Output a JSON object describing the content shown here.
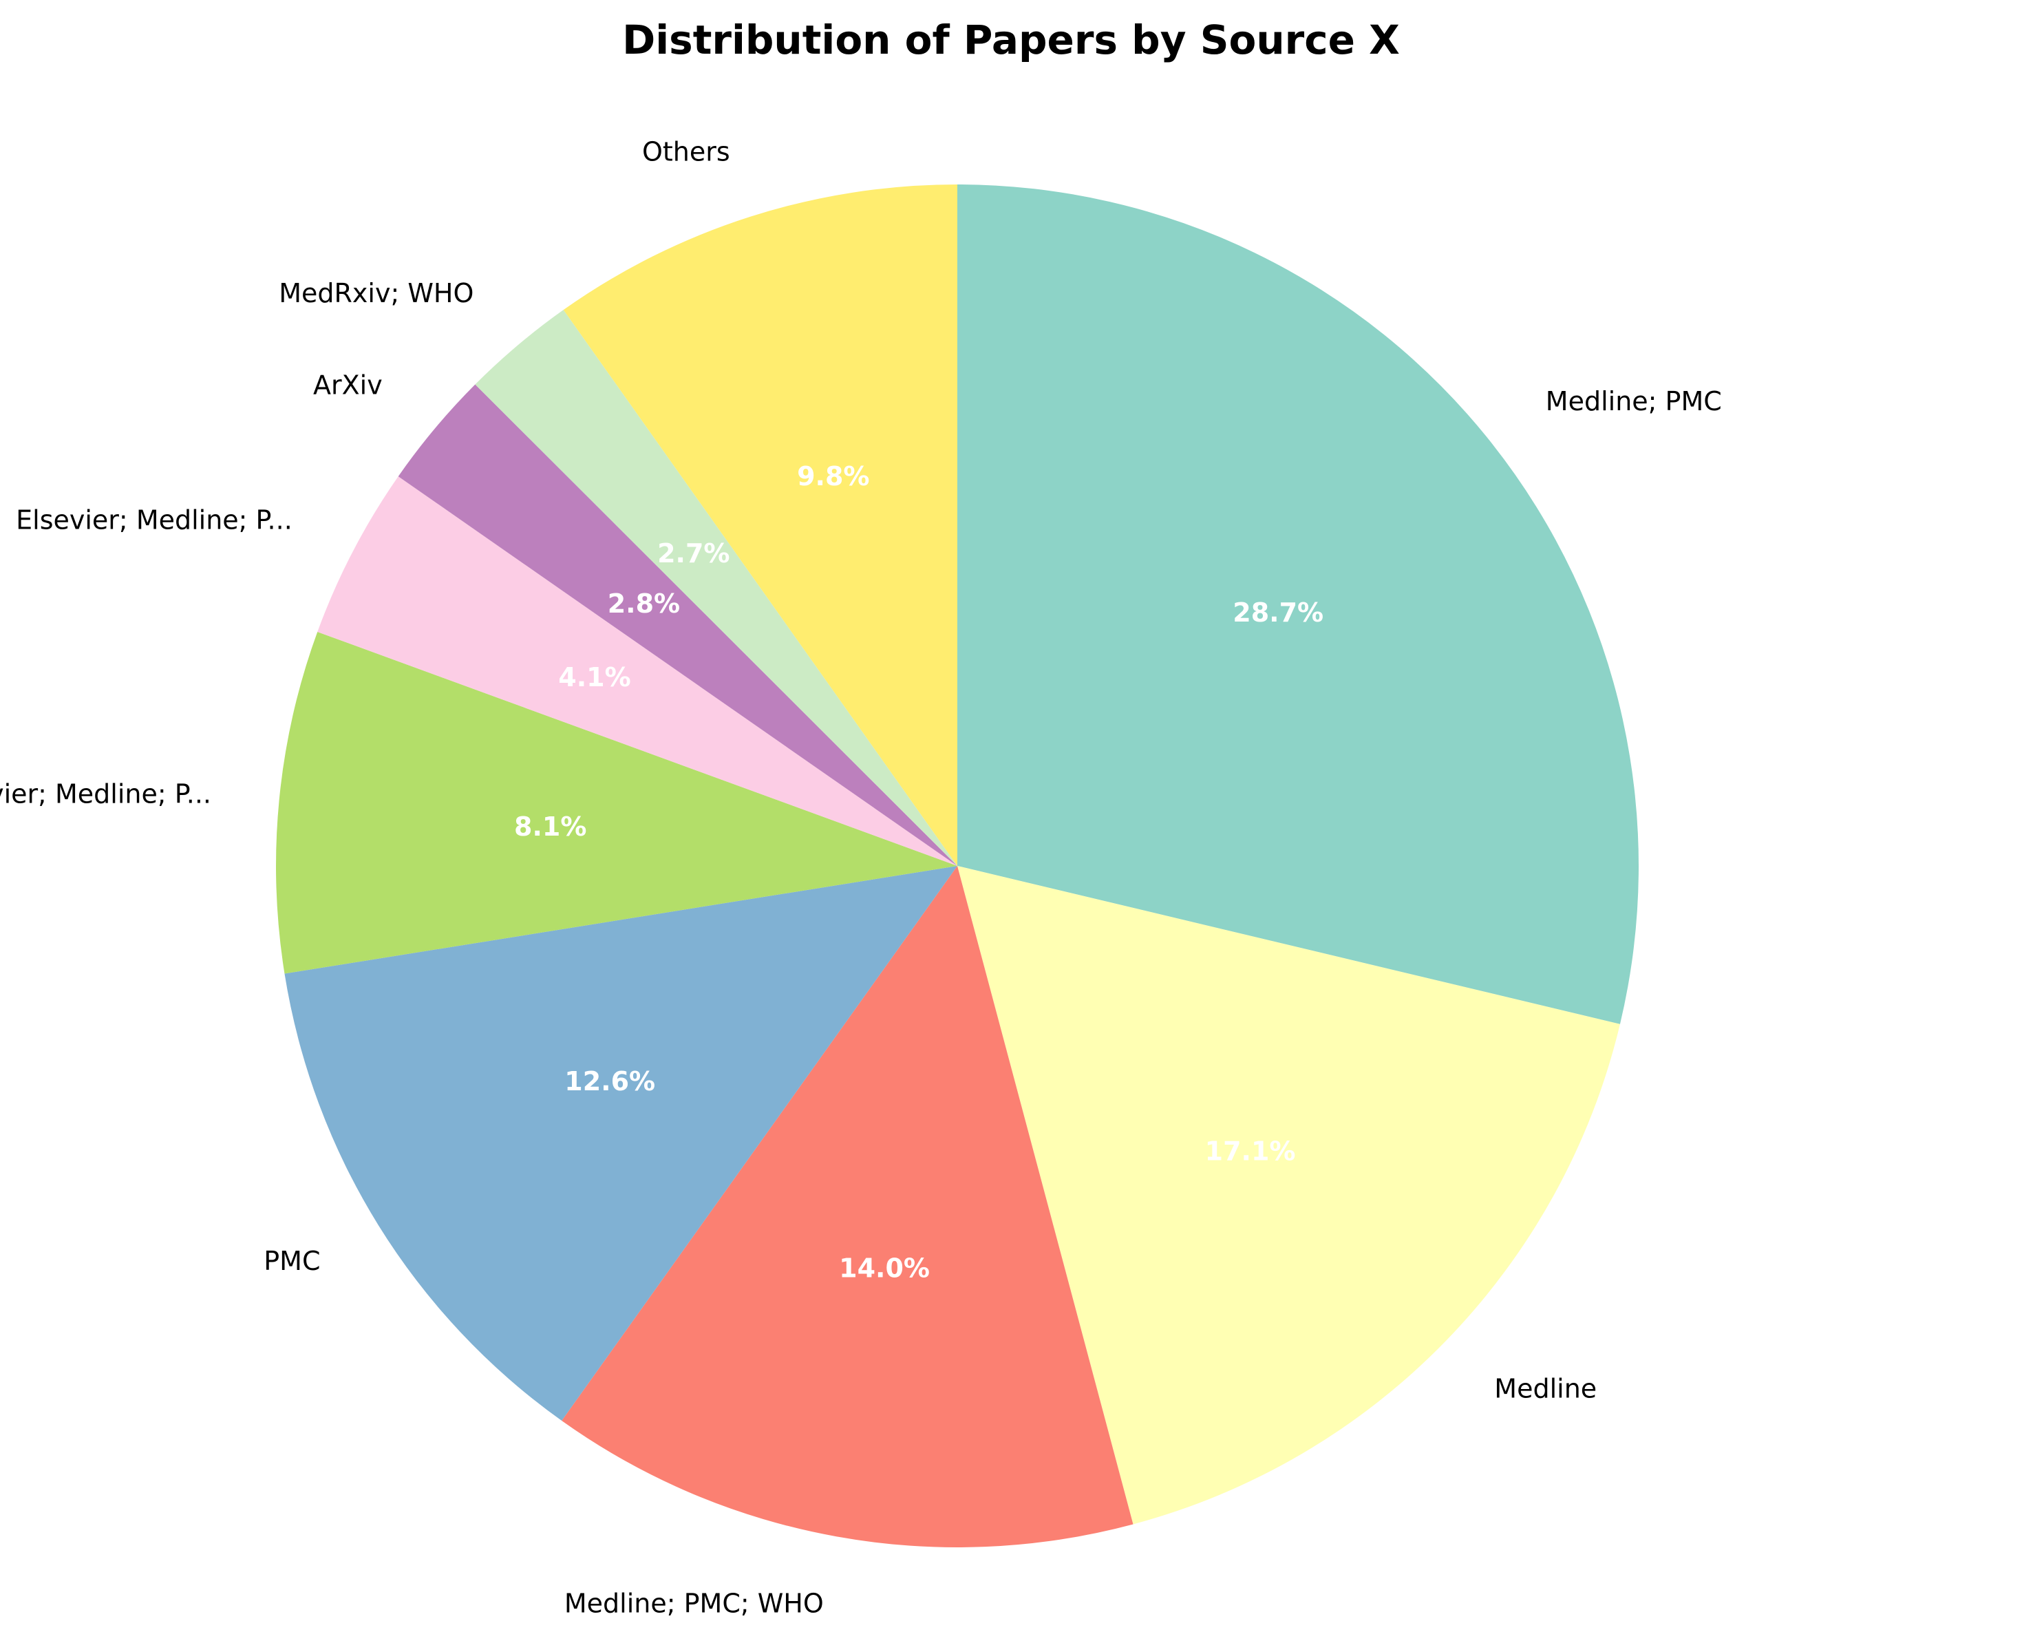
{
  "chart_data": {
    "type": "pie",
    "title": "Distribution of Papers by Source X",
    "start_angle_deg": 90,
    "direction": "clockwise",
    "slices": [
      {
        "label": "Medline; PMC",
        "value": 28.7,
        "pct_label": "28.7%",
        "color": "#8dd3c7"
      },
      {
        "label": "Medline",
        "value": 17.1,
        "pct_label": "17.1%",
        "color": "#ffffb3"
      },
      {
        "label": "Medline; PMC; WHO",
        "value": 14.0,
        "pct_label": "14.0%",
        "color": "#fb8072"
      },
      {
        "label": "PMC",
        "value": 12.6,
        "pct_label": "12.6%",
        "color": "#80b1d3"
      },
      {
        "label": "Elsevier; Medline; P...",
        "value": 8.1,
        "pct_label": "8.1%",
        "color": "#b3de69"
      },
      {
        "label": "Elsevier; Medline; P...",
        "value": 4.1,
        "pct_label": "4.1%",
        "color": "#fccde5"
      },
      {
        "label": "ArXiv",
        "value": 2.8,
        "pct_label": "2.8%",
        "color": "#bc80bd"
      },
      {
        "label": "MedRxiv; WHO",
        "value": 2.7,
        "pct_label": "2.7%",
        "color": "#ccebc5"
      },
      {
        "label": "Others",
        "value": 9.8,
        "pct_label": "9.8%",
        "color": "#ffed6f"
      }
    ]
  }
}
